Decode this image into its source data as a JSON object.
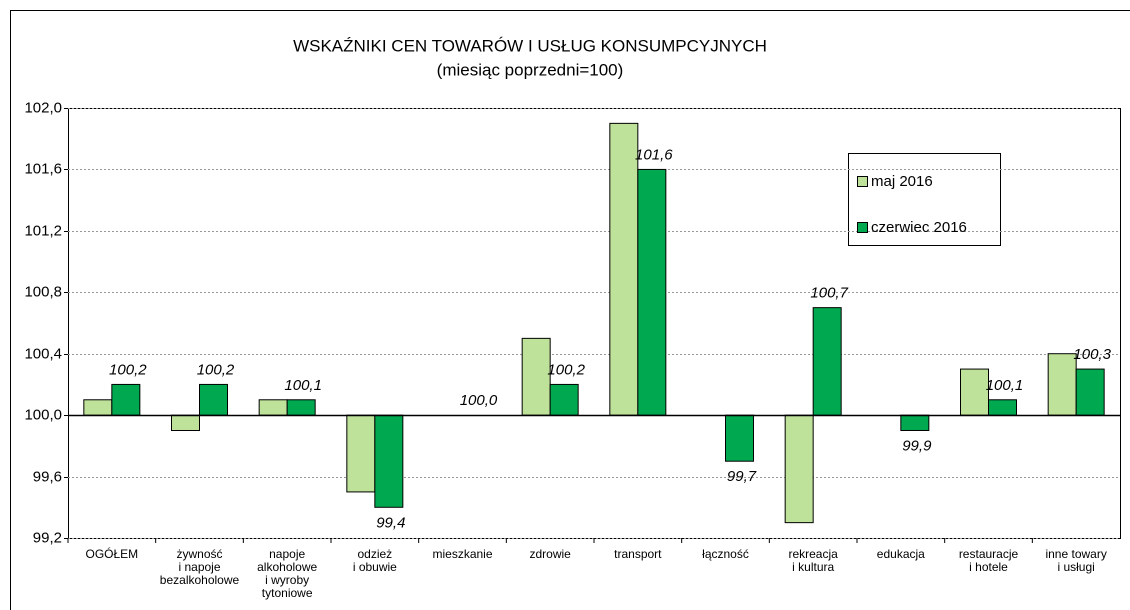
{
  "chart_data": {
    "type": "bar",
    "title": "WSKAŹNIKI CEN TOWARÓW I USŁUG KONSUMPCYJNYCH",
    "subtitle": "(miesiąc poprzedni=100)",
    "categories": [
      "OGÓŁEM",
      "żywność\ni napoje\nbezalkoholowe",
      "napoje\nalkoholowe\ni wyroby\ntytoniowe",
      "odzież\ni obuwie",
      "mieszkanie",
      "zdrowie",
      "transport",
      "łączność",
      "rekreacja\ni kultura",
      "edukacja",
      "restauracje\ni hotele",
      "inne towary\ni usługi"
    ],
    "series": [
      {
        "name": "maj 2016",
        "color": "#bfe29a",
        "values": [
          100.1,
          99.9,
          100.1,
          99.5,
          100.0,
          100.5,
          101.9,
          100.0,
          99.3,
          100.0,
          100.3,
          100.4
        ]
      },
      {
        "name": "czerwiec 2016",
        "color": "#00a850",
        "values": [
          100.2,
          100.2,
          100.1,
          99.4,
          100.0,
          100.2,
          101.6,
          99.7,
          100.7,
          99.9,
          100.1,
          100.3
        ],
        "value_labels": [
          "100,2",
          "100,2",
          "100,1",
          "99,4",
          "100,0",
          "100,2",
          "101,6",
          "99,7",
          "100,7",
          "99,9",
          "100,1",
          "100,3"
        ]
      }
    ],
    "baseline": 100,
    "ylim": [
      99.2,
      102.0
    ],
    "yticks": [
      {
        "value": 99.2,
        "label": "99,2"
      },
      {
        "value": 99.6,
        "label": "99,6"
      },
      {
        "value": 100.0,
        "label": "100,0"
      },
      {
        "value": 100.4,
        "label": "100,4"
      },
      {
        "value": 100.8,
        "label": "100,8"
      },
      {
        "value": 101.2,
        "label": "101,2"
      },
      {
        "value": 101.6,
        "label": "101,6"
      },
      {
        "value": 102.0,
        "label": "102,0"
      }
    ],
    "grid": true
  }
}
